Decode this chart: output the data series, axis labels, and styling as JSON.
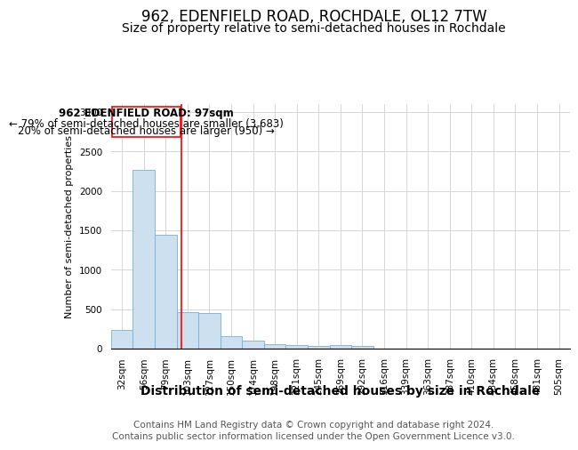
{
  "title1": "962, EDENFIELD ROAD, ROCHDALE, OL12 7TW",
  "title2": "Size of property relative to semi-detached houses in Rochdale",
  "xlabel": "Distribution of semi-detached houses by size in Rochdale",
  "ylabel": "Number of semi-detached properties",
  "categories": [
    "32sqm",
    "56sqm",
    "79sqm",
    "103sqm",
    "127sqm",
    "150sqm",
    "174sqm",
    "198sqm",
    "221sqm",
    "245sqm",
    "269sqm",
    "292sqm",
    "316sqm",
    "339sqm",
    "363sqm",
    "387sqm",
    "410sqm",
    "434sqm",
    "458sqm",
    "481sqm",
    "505sqm"
  ],
  "values": [
    240,
    2270,
    1440,
    460,
    450,
    160,
    100,
    55,
    40,
    35,
    40,
    30,
    0,
    0,
    0,
    0,
    0,
    0,
    0,
    0,
    0
  ],
  "bar_color": "#cce0f0",
  "bar_edge_color": "#7aafd4",
  "annotation_text_line1": "962 EDENFIELD ROAD: 97sqm",
  "annotation_text_line2": "← 79% of semi-detached houses are smaller (3,683)",
  "annotation_text_line3": "20% of semi-detached houses are larger (950) →",
  "red_line_x": 2.72,
  "ylim": [
    0,
    3100
  ],
  "yticks": [
    0,
    500,
    1000,
    1500,
    2000,
    2500,
    3000
  ],
  "footer1": "Contains HM Land Registry data © Crown copyright and database right 2024.",
  "footer2": "Contains public sector information licensed under the Open Government Licence v3.0.",
  "title1_fontsize": 12,
  "title2_fontsize": 10,
  "xlabel_fontsize": 10,
  "ylabel_fontsize": 8,
  "annotation_fontsize": 8.5,
  "footer_fontsize": 7.5,
  "tick_fontsize": 7.5
}
